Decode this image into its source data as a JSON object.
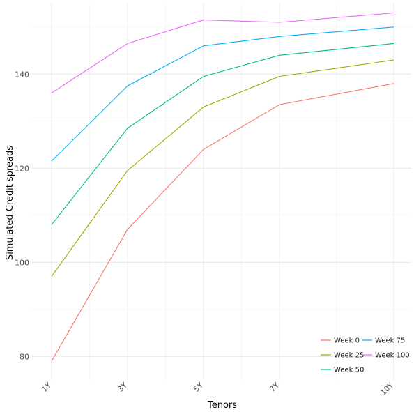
{
  "chart_data": {
    "type": "line",
    "title": "",
    "xlabel": "Tenors",
    "ylabel": "Simulated Credit spreads",
    "categories": [
      "1Y",
      "3Y",
      "5Y",
      "7Y",
      "10Y"
    ],
    "ylim": [
      75,
      155
    ],
    "yticks": [
      80,
      100,
      120,
      140
    ],
    "grid": true,
    "legend_position": "bottom-right",
    "series": [
      {
        "name": "Week 0",
        "color": "#F8766D",
        "values": [
          79.0,
          107.0,
          124.0,
          133.5,
          138.0
        ]
      },
      {
        "name": "Week 25",
        "color": "#A3A500",
        "values": [
          97.0,
          119.5,
          133.0,
          139.5,
          143.0
        ]
      },
      {
        "name": "Week 50",
        "color": "#00BF7D",
        "values": [
          108.0,
          128.5,
          139.5,
          144.0,
          146.5
        ]
      },
      {
        "name": "Week 75",
        "color": "#00B0F6",
        "values": [
          121.5,
          137.5,
          146.0,
          148.0,
          150.0
        ]
      },
      {
        "name": "Week 100",
        "color": "#E76BF3",
        "values": [
          136.0,
          146.5,
          151.5,
          151.0,
          153.0
        ]
      }
    ]
  }
}
